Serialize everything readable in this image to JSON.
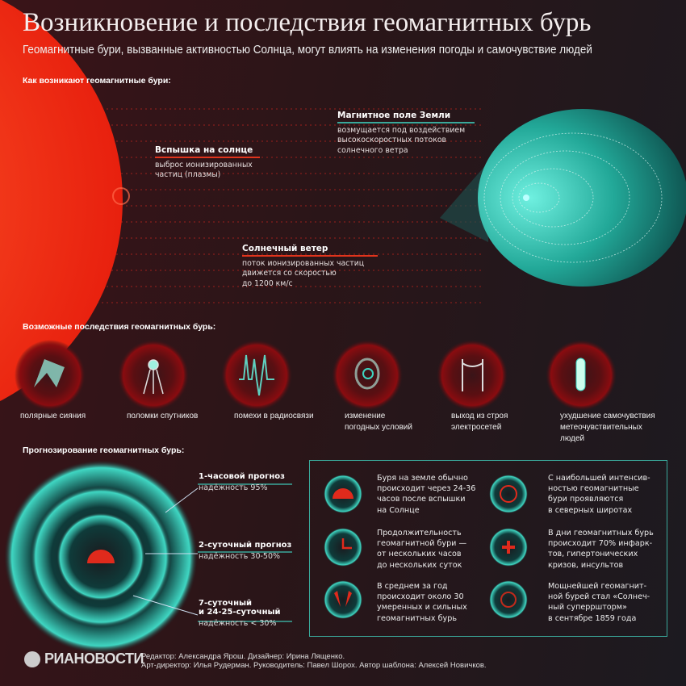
{
  "title": "Возникновение и последствия геомагнитных бурь",
  "subtitle": "Геомагнитные бури, вызванные активностью Солнца, могут влиять на изменения погоды и самочувствие людей",
  "colors": {
    "sun": "#ff3a1a",
    "accent_red": "#e0341c",
    "teal": "#3fd6c2",
    "box_border": "#3aa89a"
  },
  "origin": {
    "heading": "Как возникают геомагнитные бури:",
    "flare": {
      "title": "Вспышка на солнце",
      "text": [
        "выброс ионизированных",
        "частиц (плазмы)"
      ]
    },
    "magnetic_field": {
      "title": "Магнитное поле Земли",
      "text": [
        "возмущается под воздействием",
        "высокоскоростных потоков",
        "солнечного ветра"
      ]
    },
    "solar_wind": {
      "title": "Солнечный ветер",
      "text": [
        "поток ионизированных частиц",
        "движется со скоростью",
        "до 1200 км/с"
      ]
    }
  },
  "consequences": {
    "heading": "Возможные последствия геомагнитных бурь:",
    "items": [
      {
        "icon": "aurora-icon",
        "label": [
          "полярные сияния"
        ]
      },
      {
        "icon": "satellite-icon",
        "label": [
          "поломки спутников"
        ]
      },
      {
        "icon": "radio-wave-icon",
        "label": [
          "помехи в радиосвязи"
        ]
      },
      {
        "icon": "cyclone-icon",
        "label": [
          "изменение",
          "погодных условий"
        ]
      },
      {
        "icon": "power-line-icon",
        "label": [
          "выход из строя",
          "электросетей"
        ]
      },
      {
        "icon": "pill-icon",
        "label": [
          "ухудшение самочувствия",
          "метеочувствительных",
          "людей"
        ]
      }
    ]
  },
  "forecast": {
    "heading": "Прогнозирование геомагнитных бурь:",
    "items": [
      {
        "title": [
          "1-часовой прогноз"
        ],
        "reliability": "надёжность 95%"
      },
      {
        "title": [
          "2-суточный прогноз"
        ],
        "reliability": "надёжность 30-50%"
      },
      {
        "title": [
          "7-суточный",
          "и 24-25-суточный"
        ],
        "reliability": "надёжность < 30%"
      }
    ]
  },
  "facts": [
    {
      "icon": "sun-rays-icon",
      "text": [
        "Буря на земле обычно",
        "происходит через 24-36",
        "часов после вспышки",
        "на Солнце"
      ]
    },
    {
      "icon": "globe-icon",
      "text": [
        "С наибольшей интенсив-",
        "ностью геомагнитные",
        "бури проявляются",
        "в северных широтах"
      ]
    },
    {
      "icon": "clock-icon",
      "text": [
        "Продолжительность",
        "геомагнитной бури —",
        "от нескольких часов",
        "до нескольких суток"
      ]
    },
    {
      "icon": "medical-cross-icon",
      "text": [
        "В дни геомагнитных бурь",
        "происходит 70% инфарк-",
        "тов, гипертонических",
        "кризов, инсультов"
      ]
    },
    {
      "icon": "lungs-icon",
      "text": [
        "В среднем за год",
        "происходит около 30",
        "умеренных и сильных",
        "геомагнитных бурь"
      ]
    },
    {
      "icon": "spiral-icon",
      "text": [
        "Мощнейшей геомагнит-",
        "ной бурей стал «Солнеч-",
        "ный суперршторм»",
        "в сентябре 1859 года"
      ]
    }
  ],
  "footer": {
    "logo": "РИАНОВОСТИ",
    "credits": [
      "Редактор: Александра Ярош. Дизайнер: Ирина Лященко.",
      "Арт-директор: Илья Рудерман. Руководитель: Павел Шорох. Автор шаблона: Алексей Новичков."
    ]
  }
}
